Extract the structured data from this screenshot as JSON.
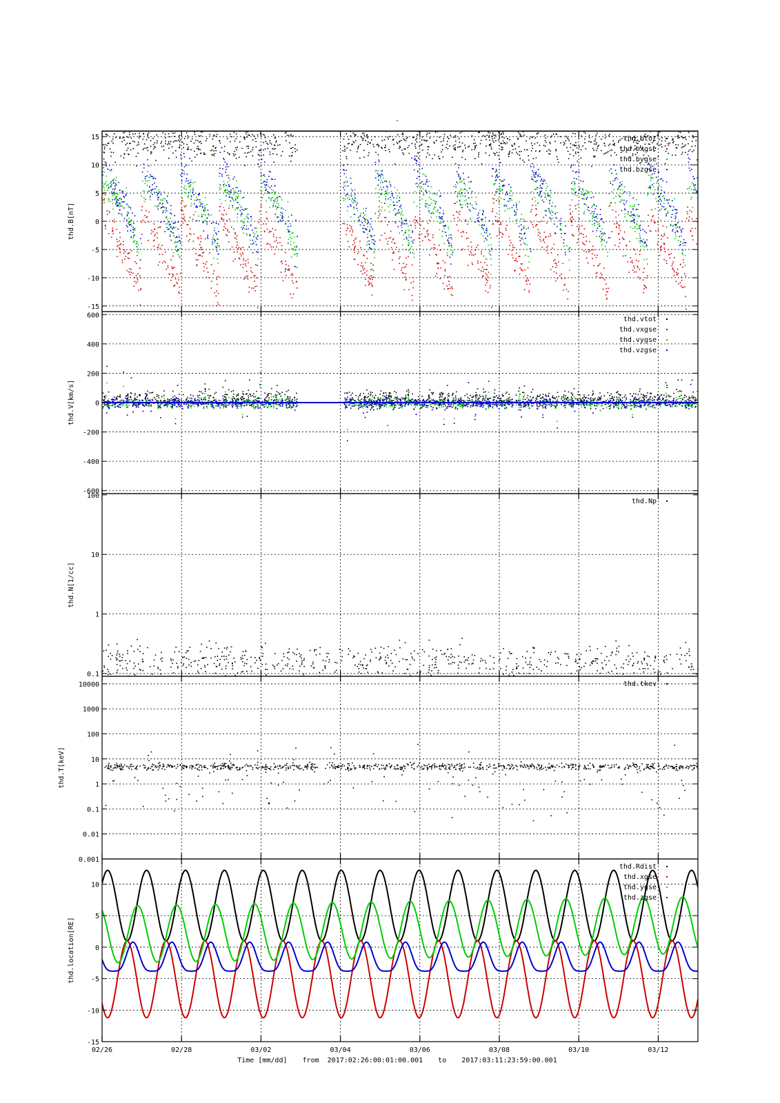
{
  "title": "-",
  "footer": {
    "time_label": "Time [mm/dd]",
    "from_word": "from",
    "start": "2017:02:26:00:01:00.001",
    "to_word": "to",
    "end": "2017:03:11:23:59:00.001"
  },
  "colors": {
    "black": "#000000",
    "red": "#cc0000",
    "green": "#00cc00",
    "blue": "#0000cc"
  },
  "chart_data": [
    {
      "type": "scatter",
      "ylabel": "thd.B[nT]",
      "ylim": [
        -16,
        16
      ],
      "yticks": [
        "15",
        "10",
        "5",
        "0",
        "-5",
        "-10",
        "-15"
      ],
      "ytick_values": [
        15,
        10,
        5,
        0,
        -5,
        -10,
        -15
      ],
      "grid": true,
      "legend_position": "top-right",
      "series": [
        {
          "name": "thd.btot",
          "color": "black"
        },
        {
          "name": "thd.bxgse",
          "color": "red"
        },
        {
          "name": "thd.bygse",
          "color": "green"
        },
        {
          "name": "thd.bzgse",
          "color": "blue"
        }
      ],
      "data_gaps": [
        [
          4.9,
          6.05
        ]
      ]
    },
    {
      "type": "scatter",
      "ylabel": "thd.V[km/s]",
      "ylim": [
        -620,
        620
      ],
      "yticks": [
        "600",
        "400",
        "200",
        "0",
        "-200",
        "-400",
        "-600"
      ],
      "ytick_values": [
        600,
        400,
        200,
        0,
        -200,
        -400,
        -600
      ],
      "grid": true,
      "legend_position": "top-right",
      "series": [
        {
          "name": "thd.vtot",
          "color": "black"
        },
        {
          "name": "thd.vxgse",
          "color": "red"
        },
        {
          "name": "thd.vygse",
          "color": "green"
        },
        {
          "name": "thd.vzgse",
          "color": "blue"
        }
      ],
      "data_gaps": [
        [
          4.9,
          6.05
        ]
      ]
    },
    {
      "type": "scatter",
      "ylabel": "thd.N[1/cc]",
      "yscale": "log",
      "ylim": [
        0.09,
        105
      ],
      "yticks": [
        "100",
        "10",
        "1",
        "0.1"
      ],
      "ytick_values": [
        100,
        10,
        1,
        0.1
      ],
      "grid": true,
      "legend_position": "top-right",
      "series": [
        {
          "name": "thd.Np",
          "color": "black"
        }
      ]
    },
    {
      "type": "scatter",
      "ylabel": "thd.T[keV]",
      "yscale": "log",
      "ylim": [
        0.001,
        20000
      ],
      "yticks": [
        "10000",
        "1000",
        "100",
        "10",
        "1",
        "0.1",
        "0.01",
        "0.001"
      ],
      "ytick_values": [
        10000,
        1000,
        100,
        10,
        1,
        0.1,
        0.01,
        0.001
      ],
      "grid": true,
      "legend_position": "top-right",
      "series": [
        {
          "name": "thd.tkev",
          "color": "black"
        }
      ]
    },
    {
      "type": "line",
      "ylabel": "thd.location[RE]",
      "ylim": [
        -15,
        14
      ],
      "yticks": [
        "10",
        "5",
        "0",
        "-5",
        "-10",
        "-15"
      ],
      "ytick_values": [
        10,
        5,
        0,
        -5,
        -10,
        -15
      ],
      "grid": true,
      "legend_position": "top-right",
      "orbit_period_days": 0.98,
      "series": [
        {
          "name": "thd.Rdist",
          "color": "black",
          "min": 1,
          "max": 12.2
        },
        {
          "name": "thd.xgse",
          "color": "red",
          "min": -11.2,
          "max": 1
        },
        {
          "name": "thd.ygse",
          "color": "green",
          "min": -2.5,
          "max": 6.5
        },
        {
          "name": "thd.zgse",
          "color": "blue",
          "min": -3.8,
          "max": 0.8
        }
      ]
    }
  ],
  "x_axis": {
    "label": "Time [mm/dd]",
    "range_days": [
      0,
      15
    ],
    "ticks": [
      {
        "day": 0,
        "label": "02/26"
      },
      {
        "day": 2,
        "label": "02/28"
      },
      {
        "day": 4,
        "label": "03/02"
      },
      {
        "day": 6,
        "label": "03/04"
      },
      {
        "day": 8,
        "label": "03/06"
      },
      {
        "day": 10,
        "label": "03/08"
      },
      {
        "day": 12,
        "label": "03/10"
      },
      {
        "day": 14,
        "label": "03/12"
      }
    ]
  }
}
